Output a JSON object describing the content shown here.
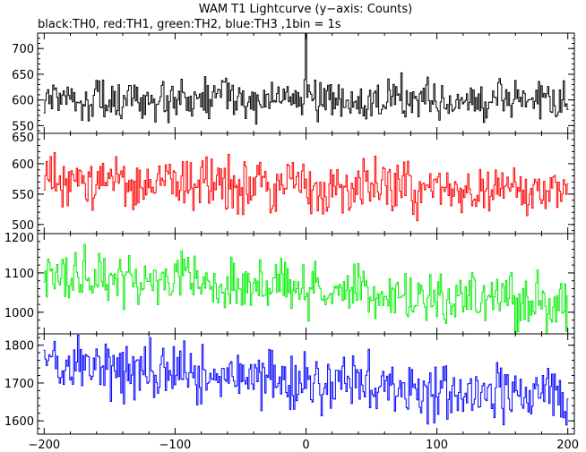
{
  "title": "WAM T1 Lightcurve (y−axis: Counts)",
  "subtitle": "black:TH0, red:TH1, green:TH2, blue:TH3 ,1bin = 1s",
  "chart_data": {
    "type": "line",
    "title": "WAM T1 Lightcurve (y−axis: Counts)",
    "subtitle": "black:TH0, red:TH1, green:TH2, blue:TH3 ,1bin = 1s",
    "shared_x": {
      "xlim": [
        -205,
        205
      ],
      "ticks": [
        -200,
        -100,
        0,
        100,
        200
      ],
      "tick_labels": [
        "−200",
        "−100",
        "0",
        "100",
        "200"
      ],
      "range": [
        -200,
        200
      ],
      "step": 1
    },
    "panels": [
      {
        "name": "TH0",
        "color": "#000000",
        "ylim": [
          535,
          730
        ],
        "yticks": [
          550,
          600,
          650,
          700
        ],
        "base": [
          598,
          598,
          598,
          598,
          598
        ],
        "noise": 20,
        "spike": {
          "x": 0,
          "y": 735
        }
      },
      {
        "name": "TH1",
        "color": "#ff0000",
        "ylim": [
          485,
          650
        ],
        "yticks": [
          500,
          550,
          600,
          650
        ],
        "base": [
          572,
          567,
          562,
          557,
          552
        ],
        "noise": 22
      },
      {
        "name": "TH2",
        "color": "#00ee00",
        "ylim": [
          945,
          1200
        ],
        "yticks": [
          1000,
          1100,
          1200
        ],
        "base": [
          1100,
          1080,
          1060,
          1040,
          1015
        ],
        "noise": 35
      },
      {
        "name": "TH3",
        "color": "#0000ff",
        "ylim": [
          1565,
          1830
        ],
        "yticks": [
          1600,
          1700,
          1800
        ],
        "base": [
          1740,
          1725,
          1705,
          1680,
          1670
        ],
        "noise": 38
      }
    ]
  }
}
